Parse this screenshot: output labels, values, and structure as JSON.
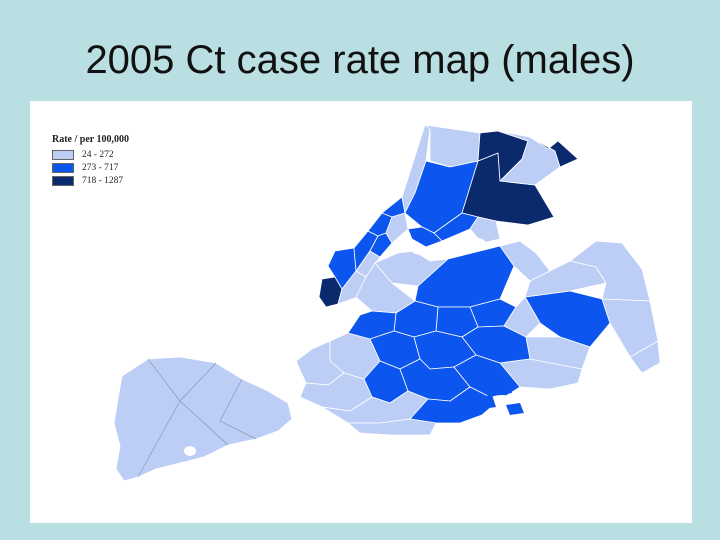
{
  "slide": {
    "title": "2005 Ct case rate map (males)",
    "background_color": "#b9dfe2"
  },
  "map": {
    "legend": {
      "title": "Rate / per 100,000",
      "classes": [
        {
          "label": "24 - 272",
          "color": "#bccef5"
        },
        {
          "label": "273 - 717",
          "color": "#0c55ee"
        },
        {
          "label": "718 - 1287",
          "color": "#0b2a6e"
        }
      ]
    },
    "region_classes": {
      "manhattan": [
        "high",
        "mid",
        "mid",
        "mid",
        "mid",
        "low",
        "low",
        "mid",
        "low"
      ],
      "bronx": [
        "low",
        "low",
        "mid",
        "high",
        "high",
        "mid",
        "mid",
        "low",
        "low",
        "high"
      ],
      "queens": [
        "mid",
        "mid",
        "mid",
        "low",
        "low",
        "low",
        "low",
        "mid",
        "low",
        "low",
        "low",
        "low",
        "mid",
        "low"
      ],
      "brooklyn": [
        "low",
        "low",
        "mid",
        "mid",
        "mid",
        "mid",
        "mid",
        "mid",
        "mid",
        "low",
        "low",
        "low",
        "mid",
        "low"
      ],
      "staten_island": [
        "low"
      ]
    }
  }
}
